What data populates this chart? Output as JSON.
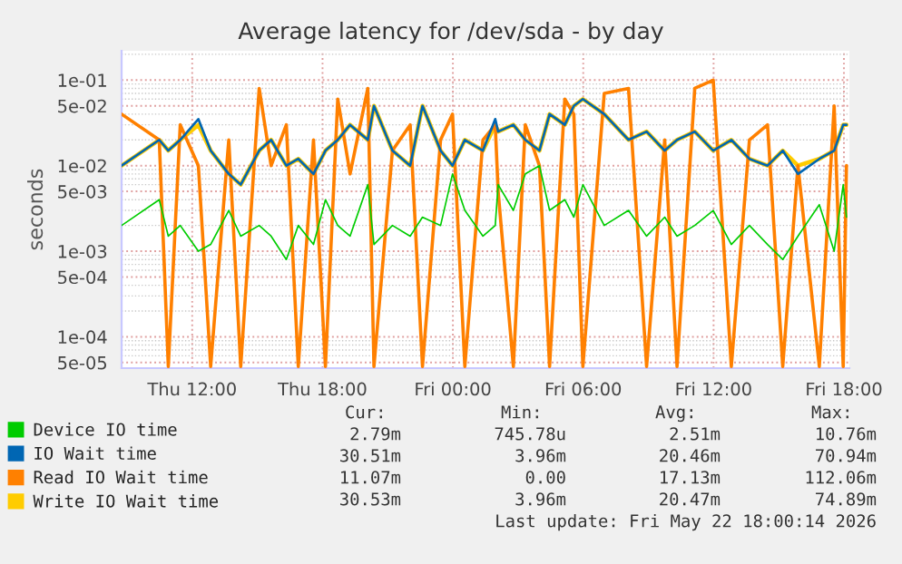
{
  "chart_data": {
    "type": "line",
    "title": "Average latency for /dev/sda - by day",
    "ylabel": "seconds",
    "x": [
      "2026-05-21T08:45",
      "2026-05-21T10:29",
      "2026-05-21T10:54",
      "2026-05-21T11:27",
      "2026-05-21T12:17",
      "2026-05-21T12:51",
      "2026-05-21T13:41",
      "2026-05-21T14:14",
      "2026-05-21T15:05",
      "2026-05-21T15:38",
      "2026-05-21T16:20",
      "2026-05-21T16:53",
      "2026-05-21T17:35",
      "2026-05-21T18:08",
      "2026-05-21T18:42",
      "2026-05-21T19:16",
      "2026-05-21T20:05",
      "2026-05-21T20:22",
      "2026-05-21T21:13",
      "2026-05-21T22:02",
      "2026-05-21T22:36",
      "2026-05-21T23:26",
      "2026-05-21T23:59",
      "2026-05-22T00:33",
      "2026-05-22T01:23",
      "2026-05-22T01:57",
      "2026-05-22T02:05",
      "2026-05-22T02:47",
      "2026-05-22T03:20",
      "2026-05-22T03:59",
      "2026-05-22T04:27",
      "2026-05-22T05:09",
      "2026-05-22T05:34",
      "2026-05-22T05:59",
      "2026-05-22T06:58",
      "2026-05-22T08:05",
      "2026-05-22T08:55",
      "2026-05-22T09:45",
      "2026-05-22T10:19",
      "2026-05-22T11:08",
      "2026-05-22T11:59",
      "2026-05-22T12:49",
      "2026-05-22T13:39",
      "2026-05-22T14:29",
      "2026-05-22T15:11",
      "2026-05-22T15:53",
      "2026-05-22T16:52",
      "2026-05-22T17:33",
      "2026-05-22T17:58",
      "2026-05-22T18:07"
    ],
    "series": [
      {
        "name": "Device IO time",
        "color": "#00cc00",
        "values": [
          0.002,
          0.004,
          0.0015,
          0.002,
          0.001,
          0.0012,
          0.003,
          0.0015,
          0.002,
          0.0015,
          0.0008,
          0.002,
          0.0012,
          0.004,
          0.002,
          0.0015,
          0.006,
          0.0012,
          0.002,
          0.0015,
          0.0025,
          0.002,
          0.008,
          0.003,
          0.0015,
          0.002,
          0.006,
          0.003,
          0.008,
          0.01,
          0.003,
          0.004,
          0.0025,
          0.006,
          0.002,
          0.003,
          0.0015,
          0.0025,
          0.0015,
          0.002,
          0.003,
          0.0012,
          0.002,
          0.0012,
          0.0008,
          0.0015,
          0.0035,
          0.001,
          0.006,
          0.0025
        ]
      },
      {
        "name": "IO Wait time",
        "color": "#0066b3",
        "values": [
          0.01,
          0.02,
          0.015,
          0.02,
          0.035,
          0.015,
          0.008,
          0.006,
          0.015,
          0.02,
          0.01,
          0.012,
          0.008,
          0.015,
          0.02,
          0.03,
          0.02,
          0.05,
          0.015,
          0.01,
          0.05,
          0.015,
          0.01,
          0.02,
          0.015,
          0.035,
          0.025,
          0.03,
          0.02,
          0.015,
          0.04,
          0.03,
          0.05,
          0.06,
          0.04,
          0.02,
          0.025,
          0.015,
          0.02,
          0.025,
          0.015,
          0.02,
          0.012,
          0.01,
          0.015,
          0.008,
          0.012,
          0.015,
          0.03,
          0.03
        ]
      },
      {
        "name": "Read IO Wait time",
        "color": "#ff8000",
        "values": [
          0.04,
          0.02,
          4.5e-05,
          0.03,
          0.01,
          4.5e-05,
          0.02,
          4.5e-05,
          0.08,
          0.01,
          0.03,
          4.5e-05,
          0.02,
          4.5e-05,
          0.06,
          0.008,
          0.08,
          4.5e-05,
          0.015,
          0.03,
          4.5e-05,
          0.02,
          0.04,
          4.5e-05,
          0.02,
          0.03,
          0.005,
          4.5e-05,
          0.03,
          0.01,
          4.5e-05,
          0.06,
          0.04,
          4.5e-05,
          0.07,
          0.08,
          4.5e-05,
          0.02,
          4.5e-05,
          0.08,
          0.1,
          4.5e-05,
          0.02,
          0.03,
          4.5e-05,
          0.01,
          4.5e-05,
          0.05,
          4.5e-05,
          0.01
        ]
      },
      {
        "name": "Write IO Wait time",
        "color": "#ffcc00",
        "values": [
          0.01,
          0.02,
          0.015,
          0.02,
          0.03,
          0.015,
          0.008,
          0.006,
          0.015,
          0.02,
          0.01,
          0.012,
          0.008,
          0.015,
          0.02,
          0.03,
          0.02,
          0.05,
          0.015,
          0.01,
          0.05,
          0.015,
          0.01,
          0.02,
          0.015,
          0.03,
          0.025,
          0.03,
          0.02,
          0.015,
          0.04,
          0.03,
          0.05,
          0.06,
          0.04,
          0.02,
          0.025,
          0.015,
          0.02,
          0.025,
          0.015,
          0.02,
          0.012,
          0.01,
          0.015,
          0.01,
          0.012,
          0.015,
          0.03,
          0.03
        ]
      }
    ],
    "log": "y",
    "xlim": [
      "2026-05-21T08:45",
      "2026-05-22T18:15"
    ],
    "xticks": [
      {
        "value": "2026-05-21T12:00",
        "label": "Thu 12:00"
      },
      {
        "value": "2026-05-21T18:00",
        "label": "Thu 18:00"
      },
      {
        "value": "2026-05-22T00:00",
        "label": "Fri 00:00"
      },
      {
        "value": "2026-05-22T06:00",
        "label": "Fri 06:00"
      },
      {
        "value": "2026-05-22T12:00",
        "label": "Fri 12:00"
      },
      {
        "value": "2026-05-22T18:00",
        "label": "Fri 18:00"
      }
    ],
    "ylim": [
      4.3e-05,
      0.22
    ],
    "yticks": [
      {
        "value": 0.1,
        "label": "1e-01"
      },
      {
        "value": 0.05,
        "label": "5e-02"
      },
      {
        "value": 0.01,
        "label": "1e-02"
      },
      {
        "value": 0.005,
        "label": "5e-03"
      },
      {
        "value": 0.001,
        "label": "1e-03"
      },
      {
        "value": 0.0005,
        "label": "5e-04"
      },
      {
        "value": 0.0001,
        "label": "1e-04"
      },
      {
        "value": 5e-05,
        "label": "5e-05"
      }
    ],
    "grid": true,
    "legend": "bottom",
    "annotations": [
      "Cur:",
      "Min:",
      "Avg:",
      "Max:",
      "2.79m",
      "745.78u",
      "2.51m",
      "10.76m",
      "30.51m",
      "3.96m",
      "20.46m",
      "70.94m",
      "11.07m",
      "0.00",
      "17.13m",
      "112.06m",
      "30.53m",
      "3.96m",
      "20.47m",
      "74.89m",
      "Last update: Fri May 22 18:00:14 2026"
    ]
  }
}
